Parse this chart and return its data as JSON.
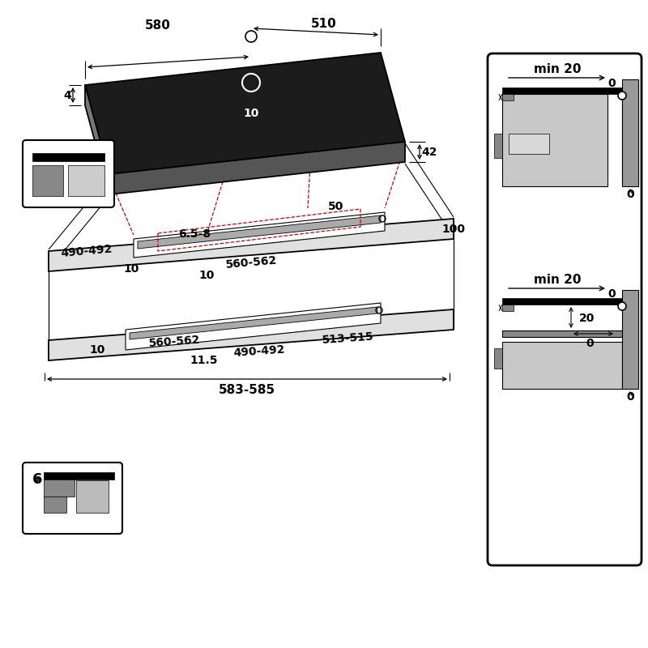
{
  "bg_color": "#ffffff",
  "line_color": "#000000",
  "red_color": "#cc0000",
  "gray_dark": "#888888",
  "gray_mid": "#aaaaaa",
  "gray_light": "#cccccc",
  "gray_fill": "#d8d8d8",
  "black_fill": "#111111",
  "fs_small": 9,
  "fs_med": 10,
  "fs_large": 11,
  "lw_main": 1.3,
  "lw_thin": 0.8
}
